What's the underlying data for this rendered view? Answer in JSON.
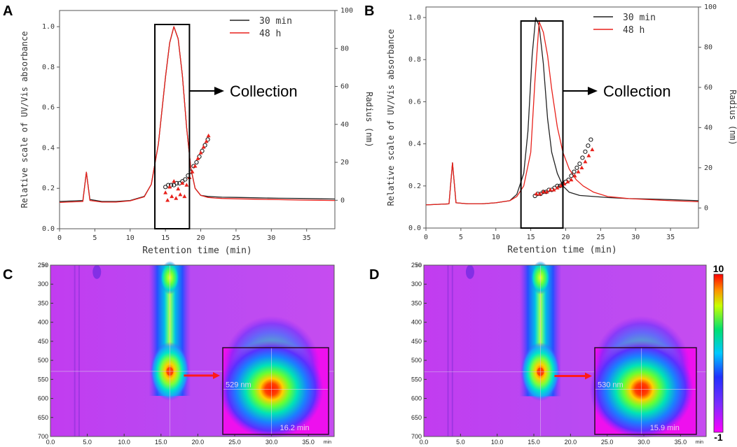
{
  "panels": [
    {
      "letter": "A",
      "xlabel": "Retention time (min)",
      "ylabel": "Relative scale of UV/Vis absorbance",
      "y2label": "Radius (nm)",
      "annotation": "Collection",
      "xticks": [
        "0",
        "5",
        "10",
        "15",
        "20",
        "25",
        "30",
        "35"
      ],
      "yticks": [
        "0.0",
        "0.2",
        "0.4",
        "0.6",
        "0.8",
        "1.0"
      ],
      "y2ticks": [
        "0",
        "20",
        "40",
        "60",
        "80",
        "100"
      ]
    },
    {
      "letter": "B",
      "xlabel": "Retention time (min)",
      "ylabel": "Relative scale of UV/Vis absorbance",
      "y2label": "Radius (nm)",
      "annotation": "Collection",
      "xticks": [
        "0",
        "5",
        "10",
        "15",
        "20",
        "25",
        "30",
        "35"
      ],
      "yticks": [
        "0.0",
        "0.2",
        "0.4",
        "0.6",
        "0.8",
        "1.0"
      ],
      "y2ticks": [
        "0",
        "20",
        "40",
        "60",
        "80",
        "100"
      ]
    },
    {
      "letter": "C",
      "yticks": [
        "250",
        "300",
        "350",
        "400",
        "450",
        "500",
        "550",
        "600",
        "650",
        "700"
      ],
      "yunit": "nm",
      "xticks": [
        "0.0",
        "5.0",
        "10.0",
        "15.0",
        "20.0",
        "25.0",
        "30.0",
        "35.0"
      ],
      "xunit": "min",
      "inset_wavelength": "529 nm",
      "inset_time": "16.2 min"
    },
    {
      "letter": "D",
      "yticks": [
        "250",
        "300",
        "350",
        "400",
        "450",
        "500",
        "550",
        "600",
        "650",
        "700"
      ],
      "yunit": "nm",
      "xticks": [
        "0.0",
        "5.0",
        "10.0",
        "15.0",
        "20.0",
        "25.0",
        "30.0",
        "35.0"
      ],
      "xunit": "min",
      "inset_wavelength": "530 nm",
      "inset_time": "15.9 min",
      "colorbar_max": "10",
      "colorbar_min": "-1"
    }
  ],
  "chart_data": [
    {
      "type": "line",
      "panel": "A",
      "title": "",
      "xlabel": "Retention time (min)",
      "ylabel": "Relative scale of UV/Vis absorbance",
      "y2label": "Radius (nm)",
      "xlim": [
        0,
        39
      ],
      "ylim": [
        0,
        1.08
      ],
      "y2lim": [
        -15,
        100
      ],
      "legend_position": "top-right",
      "collection_window": [
        13.5,
        18.4
      ],
      "series": [
        {
          "name": "30 min",
          "color": "#222222",
          "x": [
            0,
            3.3,
            3.8,
            4.3,
            6,
            8,
            10,
            12,
            13,
            14,
            15,
            15.6,
            16.2,
            16.8,
            17.4,
            18,
            18.6,
            19.2,
            20,
            21,
            22,
            23,
            25,
            28,
            31,
            34,
            37,
            39
          ],
          "y": [
            0.135,
            0.14,
            0.28,
            0.145,
            0.135,
            0.135,
            0.14,
            0.16,
            0.22,
            0.42,
            0.75,
            0.92,
            1.0,
            0.94,
            0.76,
            0.5,
            0.3,
            0.2,
            0.165,
            0.16,
            0.158,
            0.156,
            0.155,
            0.153,
            0.151,
            0.15,
            0.148,
            0.147
          ]
        },
        {
          "name": "48 h",
          "color": "#e8211b",
          "x": [
            0,
            3.3,
            3.8,
            4.3,
            6,
            8,
            10,
            12,
            13,
            14,
            15,
            15.6,
            16.2,
            16.8,
            17.4,
            18,
            18.6,
            19.2,
            20,
            21,
            22,
            23,
            25,
            28,
            31,
            34,
            37,
            39
          ],
          "y": [
            0.13,
            0.135,
            0.28,
            0.14,
            0.132,
            0.132,
            0.138,
            0.158,
            0.22,
            0.42,
            0.75,
            0.92,
            1.0,
            0.94,
            0.76,
            0.5,
            0.3,
            0.2,
            0.165,
            0.155,
            0.152,
            0.15,
            0.148,
            0.146,
            0.144,
            0.142,
            0.141,
            0.14
          ]
        },
        {
          "name": "Radius 30 min",
          "axis": "right",
          "marker": "open-circle",
          "color": "#111111",
          "x": [
            15.0,
            15.4,
            15.8,
            16.2,
            16.6,
            17.0,
            17.4,
            17.8,
            18.2,
            18.6,
            19.0,
            19.4,
            19.8,
            20.2,
            20.6,
            21.0
          ],
          "y": [
            7,
            8,
            8,
            8,
            9,
            9,
            10,
            11,
            13,
            15,
            18,
            20,
            23,
            26,
            29,
            32
          ]
        },
        {
          "name": "Radius 48 h",
          "axis": "right",
          "marker": "filled-triangle",
          "color": "#e8211b",
          "x": [
            15.0,
            15.3,
            15.6,
            15.9,
            16.2,
            16.5,
            16.8,
            17.1,
            17.4,
            17.7,
            18.0,
            18.4,
            18.8,
            19.2,
            19.6,
            20.0,
            20.4,
            20.8,
            21.1
          ],
          "y": [
            4,
            0,
            7,
            2,
            10,
            1,
            6,
            3,
            9,
            2,
            8,
            12,
            15,
            18,
            22,
            25,
            28,
            31,
            34
          ]
        }
      ]
    },
    {
      "type": "line",
      "panel": "B",
      "title": "",
      "xlabel": "Retention time (min)",
      "ylabel": "Relative scale of UV/Vis absorbance",
      "y2label": "Radius (nm)",
      "xlim": [
        0,
        39
      ],
      "ylim": [
        0,
        1.05
      ],
      "y2lim": [
        -10,
        100
      ],
      "legend_position": "top-right",
      "collection_window": [
        13.6,
        19.6
      ],
      "series": [
        {
          "name": "30 min",
          "color": "#222222",
          "x": [
            0,
            3.3,
            3.8,
            4.3,
            6,
            8,
            10,
            12,
            13,
            14,
            14.6,
            15.2,
            15.7,
            16.2,
            16.8,
            17.4,
            18,
            18.8,
            19.6,
            20.5,
            22,
            24,
            26,
            29,
            32,
            35,
            39
          ],
          "y": [
            0.11,
            0.115,
            0.31,
            0.12,
            0.115,
            0.115,
            0.12,
            0.13,
            0.16,
            0.26,
            0.46,
            0.82,
            1.0,
            0.96,
            0.78,
            0.52,
            0.36,
            0.26,
            0.2,
            0.17,
            0.155,
            0.15,
            0.145,
            0.14,
            0.138,
            0.135,
            0.13
          ]
        },
        {
          "name": "48 h",
          "color": "#e8211b",
          "x": [
            0,
            3.3,
            3.8,
            4.3,
            6,
            8,
            10,
            12,
            13,
            14,
            15,
            15.6,
            16.2,
            16.8,
            17.4,
            18,
            18.8,
            19.6,
            20.5,
            21.5,
            22.5,
            24,
            26,
            29,
            32,
            35,
            39
          ],
          "y": [
            0.11,
            0.115,
            0.31,
            0.12,
            0.115,
            0.115,
            0.12,
            0.13,
            0.15,
            0.2,
            0.36,
            0.7,
            0.98,
            0.93,
            0.82,
            0.66,
            0.48,
            0.36,
            0.28,
            0.23,
            0.2,
            0.17,
            0.15,
            0.14,
            0.135,
            0.13,
            0.125
          ]
        },
        {
          "name": "Radius 30 min",
          "axis": "right",
          "marker": "open-circle",
          "color": "#111111",
          "x": [
            15.6,
            16.0,
            16.4,
            16.8,
            17.2,
            17.6,
            18.0,
            18.4,
            18.8,
            19.2,
            19.6,
            20.0,
            20.4,
            20.8,
            21.2,
            21.6,
            22.0,
            22.4,
            22.8,
            23.2,
            23.6
          ],
          "y": [
            6,
            7,
            7,
            8,
            8,
            9,
            9,
            10,
            11,
            11,
            12,
            13,
            14,
            16,
            18,
            20,
            22,
            25,
            28,
            31,
            34
          ]
        },
        {
          "name": "Radius 48 h",
          "axis": "right",
          "marker": "filled-triangle",
          "color": "#e8211b",
          "x": [
            15.8,
            16.3,
            16.8,
            17.3,
            17.8,
            18.3,
            18.8,
            19.3,
            19.8,
            20.3,
            20.8,
            21.3,
            21.8,
            22.3,
            22.8,
            23.3,
            23.8
          ],
          "y": [
            7,
            7,
            8,
            8,
            9,
            9,
            10,
            11,
            12,
            13,
            14,
            16,
            18,
            20,
            23,
            26,
            29
          ]
        }
      ]
    },
    {
      "type": "heatmap",
      "panel": "C",
      "xlabel": "min",
      "ylabel": "nm",
      "xlim": [
        0,
        38.5
      ],
      "ylim": [
        250,
        700
      ],
      "peak": {
        "time_min": 16.2,
        "wavelength_nm": 529
      },
      "inset": {
        "wavelength": "529 nm",
        "time": "16.2 min"
      }
    },
    {
      "type": "heatmap",
      "panel": "D",
      "xlabel": "min",
      "ylabel": "nm",
      "xlim": [
        0,
        38.5
      ],
      "ylim": [
        250,
        700
      ],
      "peak": {
        "time_min": 15.9,
        "wavelength_nm": 530
      },
      "inset": {
        "wavelength": "530 nm",
        "time": "15.9 min"
      },
      "colorbar": {
        "min": -1,
        "max": 10
      }
    }
  ]
}
